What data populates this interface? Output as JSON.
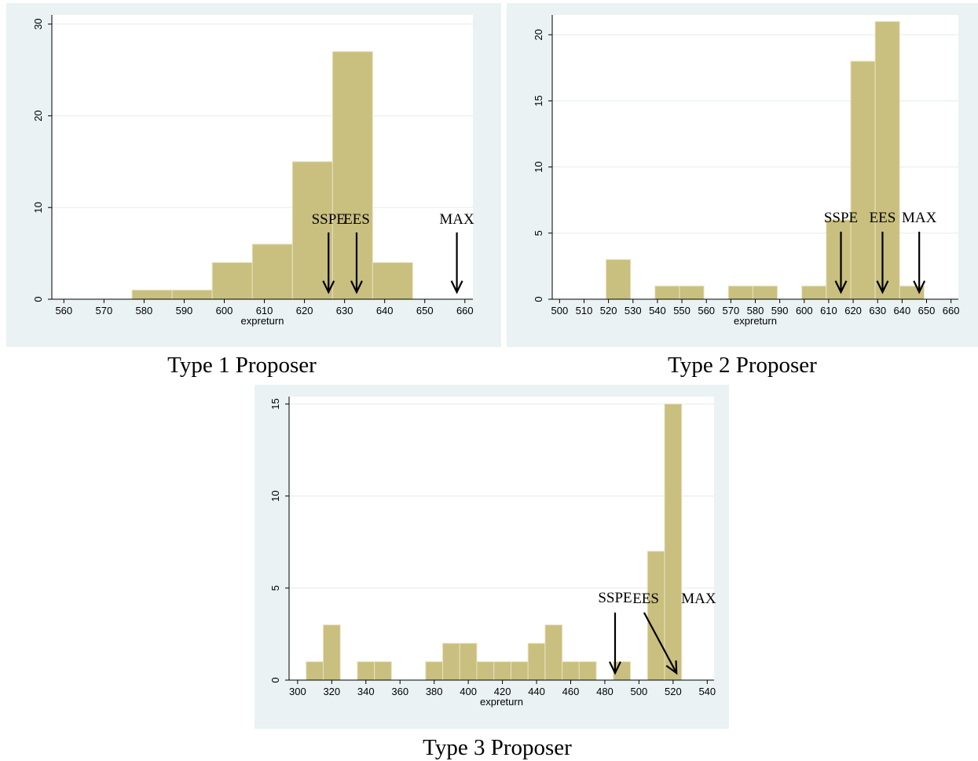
{
  "colors": {
    "panel_bg": "#eaf2f3",
    "plot_bg": "#ffffff",
    "bar_fill": "#c9bf7f",
    "bar_stroke": "#e8e2c2",
    "grid": "#e6ecec",
    "axis": "#000000"
  },
  "chart_data": [
    {
      "type": "bar",
      "caption": "Type 1 Proposer",
      "xlabel": "expreturn",
      "ylabel": "",
      "xlim": [
        557,
        662
      ],
      "ylim": [
        0,
        31
      ],
      "xticks": [
        560,
        570,
        580,
        590,
        600,
        610,
        620,
        630,
        640,
        650,
        660
      ],
      "yticks": [
        0,
        10,
        20,
        30
      ],
      "grid": true,
      "bins": [
        {
          "x0": 577,
          "x1": 587,
          "value": 1
        },
        {
          "x0": 587,
          "x1": 597,
          "value": 1
        },
        {
          "x0": 597,
          "x1": 607,
          "value": 4
        },
        {
          "x0": 607,
          "x1": 617,
          "value": 6
        },
        {
          "x0": 617,
          "x1": 627,
          "value": 15
        },
        {
          "x0": 627,
          "x1": 637,
          "value": 27
        },
        {
          "x0": 637,
          "x1": 647,
          "value": 4
        }
      ],
      "annotations": [
        {
          "label": "SSPE",
          "x": 626
        },
        {
          "label": "EES",
          "x": 633
        },
        {
          "label": "MAX",
          "x": 658
        }
      ]
    },
    {
      "type": "bar",
      "caption": "Type 2 Proposer",
      "xlabel": "expreturn",
      "ylabel": "",
      "xlim": [
        497,
        663
      ],
      "ylim": [
        0,
        21.5
      ],
      "xticks": [
        500,
        510,
        520,
        530,
        540,
        550,
        560,
        570,
        580,
        590,
        600,
        610,
        620,
        630,
        640,
        650,
        660
      ],
      "yticks": [
        0,
        5,
        10,
        15,
        20
      ],
      "grid": true,
      "bins": [
        {
          "x0": 519,
          "x1": 529,
          "value": 3
        },
        {
          "x0": 539,
          "x1": 549,
          "value": 1
        },
        {
          "x0": 549,
          "x1": 559,
          "value": 1
        },
        {
          "x0": 569,
          "x1": 579,
          "value": 1
        },
        {
          "x0": 579,
          "x1": 589,
          "value": 1
        },
        {
          "x0": 599,
          "x1": 609,
          "value": 1
        },
        {
          "x0": 609,
          "x1": 619,
          "value": 6
        },
        {
          "x0": 619,
          "x1": 629,
          "value": 18
        },
        {
          "x0": 629,
          "x1": 639,
          "value": 21
        },
        {
          "x0": 639,
          "x1": 649,
          "value": 1
        }
      ],
      "annotations": [
        {
          "label": "SSPE",
          "x": 615
        },
        {
          "label": "EES",
          "x": 632
        },
        {
          "label": "MAX",
          "x": 647
        }
      ]
    },
    {
      "type": "bar",
      "caption": "Type 3 Proposer",
      "xlabel": "expreturn",
      "ylabel": "",
      "xlim": [
        295,
        544
      ],
      "ylim": [
        0,
        15.4
      ],
      "xticks": [
        300,
        320,
        340,
        360,
        380,
        400,
        420,
        440,
        460,
        480,
        500,
        520,
        540
      ],
      "yticks": [
        0,
        5,
        10,
        15
      ],
      "grid": true,
      "bins": [
        {
          "x0": 305,
          "x1": 315,
          "value": 1
        },
        {
          "x0": 315,
          "x1": 325,
          "value": 3
        },
        {
          "x0": 335,
          "x1": 345,
          "value": 1
        },
        {
          "x0": 345,
          "x1": 355,
          "value": 1
        },
        {
          "x0": 375,
          "x1": 385,
          "value": 1
        },
        {
          "x0": 385,
          "x1": 395,
          "value": 2
        },
        {
          "x0": 395,
          "x1": 405,
          "value": 2
        },
        {
          "x0": 405,
          "x1": 415,
          "value": 1
        },
        {
          "x0": 415,
          "x1": 425,
          "value": 1
        },
        {
          "x0": 425,
          "x1": 435,
          "value": 1
        },
        {
          "x0": 435,
          "x1": 445,
          "value": 2
        },
        {
          "x0": 445,
          "x1": 455,
          "value": 3
        },
        {
          "x0": 455,
          "x1": 465,
          "value": 1
        },
        {
          "x0": 465,
          "x1": 475,
          "value": 1
        },
        {
          "x0": 485,
          "x1": 495,
          "value": 1
        },
        {
          "x0": 505,
          "x1": 515,
          "value": 7
        },
        {
          "x0": 515,
          "x1": 525,
          "value": 15
        }
      ],
      "annotations": [
        {
          "label": "SSPE",
          "x": 486
        },
        {
          "label": "EES",
          "x": 522
        },
        {
          "label": "MAX",
          "x": 522
        }
      ]
    }
  ]
}
